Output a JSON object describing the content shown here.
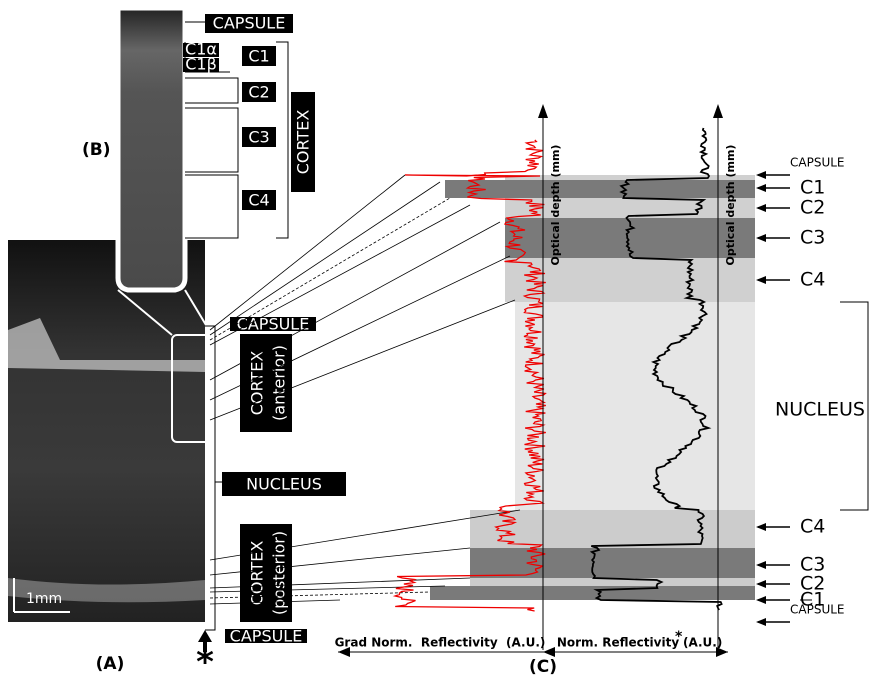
{
  "panel_b": {
    "label": "(B)",
    "capsule": "CAPSULE",
    "c1_alpha": "C1α",
    "c1_beta": "C1β",
    "c1": "C1",
    "c2": "C2",
    "c3": "C3",
    "c4": "C4",
    "cortex": "CORTEX"
  },
  "panel_a": {
    "label": "(A)",
    "scale_bar": "1mm",
    "marker": "*",
    "capsule_top": "CAPSULE",
    "cortex_anterior": "CORTEX",
    "anterior": "(anterior)",
    "nucleus": "NUCLEUS",
    "cortex_posterior": "CORTEX",
    "posterior": "(posterior)",
    "capsule_bottom": "CAPSULE"
  },
  "panel_c": {
    "label": "(C)",
    "depth_axis_left": "Optical depth (mm)",
    "depth_axis_right": "Optical depth (mm)",
    "x_label_left": "Grad Norm.  Reflectivity  (A.U.)",
    "x_label_right": "Norm. Reflectivity",
    "x_label_right_mark": "*",
    "x_label_right_unit": "(A.U.)",
    "top_layers": [
      "CAPSULE",
      "C1",
      "C2",
      "C3",
      "C4"
    ],
    "nucleus": "NUCLEUS",
    "bottom_layers": [
      "C4",
      "C3",
      "C2",
      "C1",
      "CAPSULE"
    ]
  }
}
